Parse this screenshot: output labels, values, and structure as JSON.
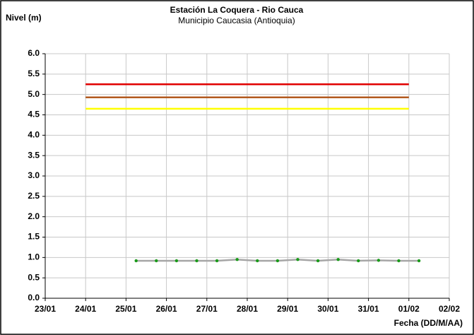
{
  "chart_data": {
    "type": "line",
    "title": "Estación La Coquera - Rio Cauca",
    "subtitle": "Municipio Caucasia (Antioquia)",
    "y_label": "Nivel (m)",
    "x_label": "Fecha (DD/M/AA)",
    "xlim": [
      0,
      10
    ],
    "xticks": [
      {
        "value": 0,
        "label": "23/01"
      },
      {
        "value": 1,
        "label": "24/01"
      },
      {
        "value": 2,
        "label": "25/01"
      },
      {
        "value": 3,
        "label": "26/01"
      },
      {
        "value": 4,
        "label": "27/01"
      },
      {
        "value": 5,
        "label": "28/01"
      },
      {
        "value": 6,
        "label": "29/01"
      },
      {
        "value": 7,
        "label": "30/01"
      },
      {
        "value": 8,
        "label": "31/01"
      },
      {
        "value": 9,
        "label": "01/02"
      },
      {
        "value": 10,
        "label": "02/02"
      }
    ],
    "ylim": [
      0,
      6
    ],
    "yticks": [
      {
        "value": 0,
        "label": "0.0"
      },
      0.5,
      {
        "value": 1,
        "label": "1.0"
      },
      1.5,
      {
        "value": 2,
        "label": "2.0"
      },
      2.5,
      {
        "value": 3,
        "label": "3.0"
      },
      3.5,
      {
        "value": 4,
        "label": "4.0"
      },
      4.5,
      {
        "value": 5,
        "label": "5.0"
      },
      5.5,
      {
        "value": 6,
        "label": "6.0"
      }
    ],
    "grid": true,
    "series": [
      {
        "color": "#e00000",
        "x": [
          1,
          9
        ],
        "values": [
          5.25,
          5.25
        ]
      },
      {
        "color": "#b35a1f",
        "x": [
          1,
          9
        ],
        "values": [
          4.93,
          4.93
        ]
      },
      {
        "color": "#ffff00",
        "x": [
          1,
          9
        ],
        "values": [
          4.65,
          4.65
        ]
      },
      {
        "color": "#a6a6a6",
        "marker_color": "#1a9a1a",
        "x": [
          2.25,
          2.75,
          3.25,
          3.75,
          4.25,
          4.75,
          5.25,
          5.75,
          6.25,
          6.75,
          7.25,
          7.75,
          8.25,
          8.75,
          9.25
        ],
        "values": [
          0.92,
          0.92,
          0.92,
          0.92,
          0.92,
          0.95,
          0.92,
          0.92,
          0.95,
          0.92,
          0.95,
          0.92,
          0.93,
          0.92,
          0.92
        ]
      }
    ]
  }
}
